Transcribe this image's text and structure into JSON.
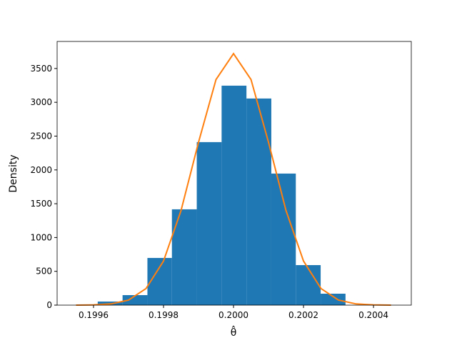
{
  "chart_data": {
    "type": "histogram",
    "xlabel": "θ̂",
    "ylabel": "Density",
    "bins": [
      0.199612,
      0.199683,
      0.199754,
      0.199824,
      0.199895,
      0.199966,
      0.200037,
      0.200108,
      0.200178,
      0.200249,
      0.20032
    ],
    "values": [
      53,
      148,
      698,
      1417,
      2411,
      3246,
      3056,
      1946,
      592,
      169
    ],
    "color": "#1f77b4",
    "curve": {
      "color": "#ff7f0e",
      "x": [
        0.19955,
        0.1996,
        0.19965,
        0.1997,
        0.19975,
        0.1998,
        0.19985,
        0.1999,
        0.19995,
        0.2,
        0.20005,
        0.2001,
        0.20015,
        0.2002,
        0.20025,
        0.2003,
        0.20035,
        0.2004,
        0.20045
      ],
      "values": [
        0.55,
        3.5,
        18,
        74,
        245,
        652,
        1398,
        2408,
        3337,
        3720,
        3337,
        2408,
        1398,
        652,
        245,
        74,
        18,
        3.5,
        0.55
      ]
    },
    "xlim": [
      0.199496,
      0.200508
    ],
    "xticks": [
      0.1996,
      0.1998,
      {
        "value": 0.2,
        "label": "0.2000"
      },
      0.2002,
      0.2004
    ],
    "ylim": [
      0,
      3900
    ],
    "yticks": [
      0,
      500,
      1000,
      1500,
      2000,
      2500,
      3000,
      3500
    ]
  }
}
